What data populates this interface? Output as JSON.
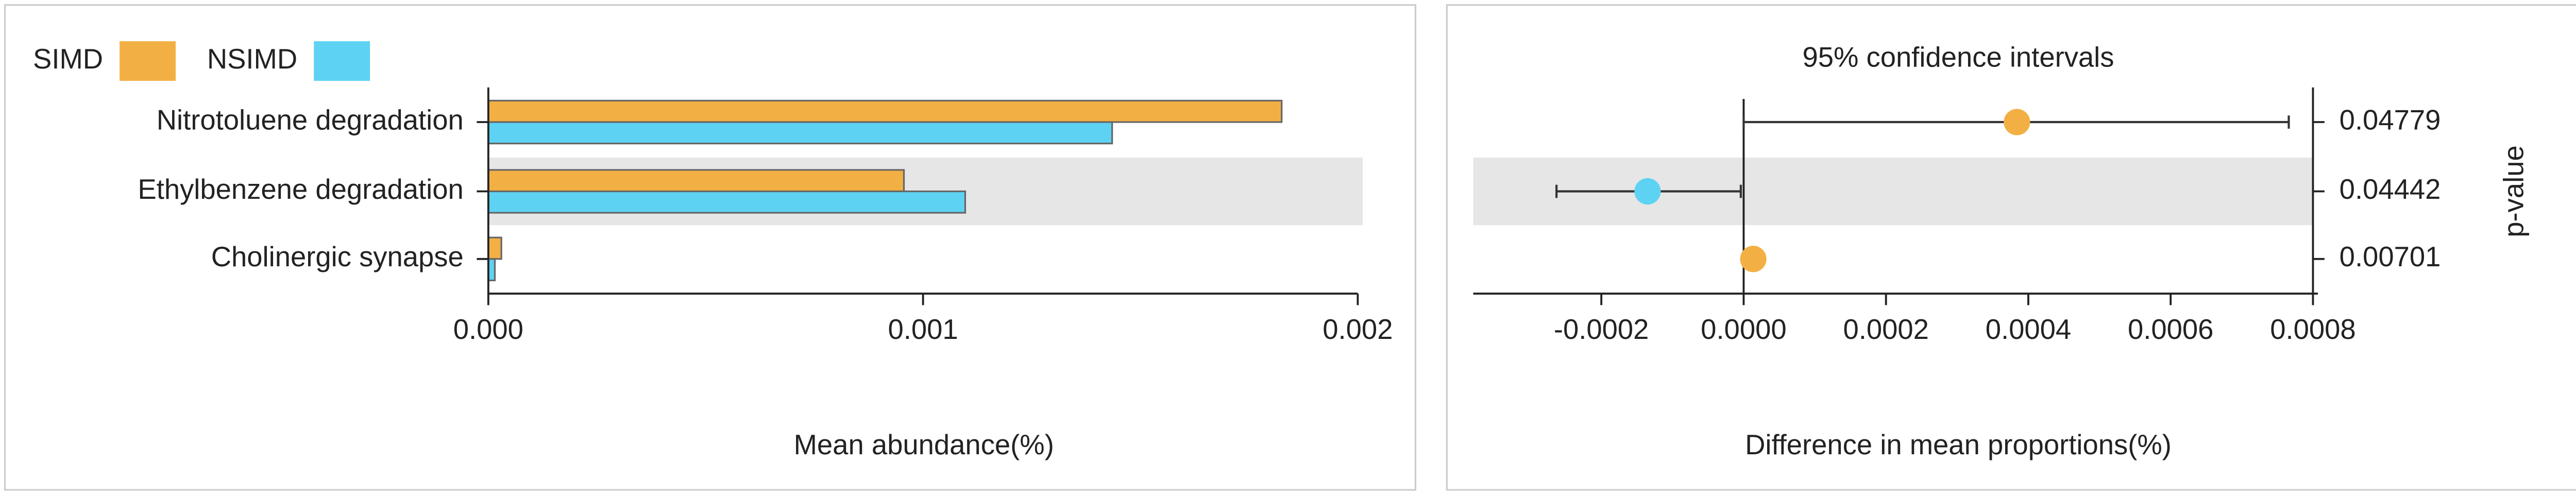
{
  "chart_data": [
    {
      "type": "bar",
      "orientation": "horizontal",
      "categories": [
        "Nitrotoluene degradation",
        "Ethylbenzene degradation",
        "Cholinergic synapse"
      ],
      "series": [
        {
          "name": "SIMD",
          "color": "#f2b044",
          "values": [
            0.001825,
            0.000956,
            3e-05
          ]
        },
        {
          "name": "NSIMD",
          "color": "#5dd2f3",
          "values": [
            0.001435,
            0.001097,
            1.5e-05
          ]
        }
      ],
      "xlim": [
        0,
        0.002
      ],
      "xticks": [
        {
          "value": 0,
          "label": "0.000"
        },
        0.001,
        0.002
      ],
      "xlabel": "Mean abundance(%)",
      "legend": "top-left"
    },
    {
      "type": "errorbar",
      "title": "95% confidence intervals",
      "values": [
        0.000384,
        -0.000135,
        1.35e-05
      ],
      "ci_lower": [
        0.0,
        -0.000263,
        0.0
      ],
      "ci_upper": [
        0.000766,
        -4e-06,
        2.7e-05
      ],
      "colors": [
        "#f2b044",
        "#5dd2f3",
        "#f2b044"
      ],
      "p_values": [
        0.04779,
        0.04442,
        0.00701
      ],
      "xlim": [
        -0.00038,
        0.0008
      ],
      "xticks": [
        -0.0002,
        {
          "value": 0,
          "label": "0.0000"
        },
        0.0002,
        0.0004,
        0.0006,
        0.0008
      ],
      "xlabel": "Difference in mean proportions(%)",
      "y2label": "p-value"
    }
  ]
}
